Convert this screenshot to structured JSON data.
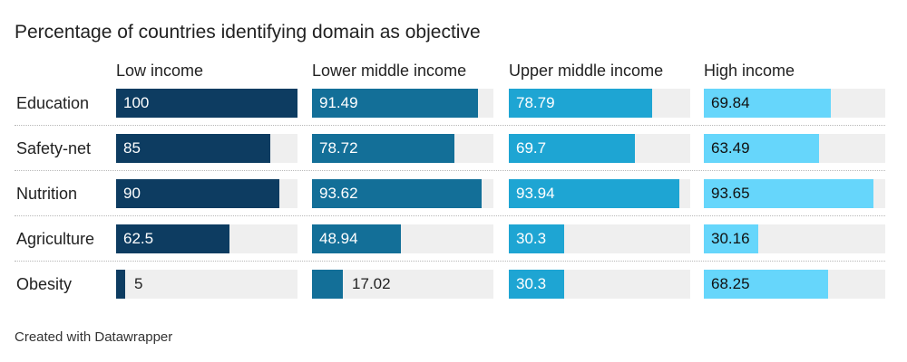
{
  "chart_data": {
    "type": "bar",
    "title": "Percentage of countries identifying domain as objective",
    "categories": [
      "Education",
      "Safety-net",
      "Nutrition",
      "Agriculture",
      "Obesity"
    ],
    "xlim": [
      0,
      100
    ],
    "series": [
      {
        "name": "Low income",
        "color": "#0d3c61",
        "values": [
          100,
          85,
          90,
          62.5,
          5
        ],
        "labels": [
          "100",
          "85",
          "90",
          "62.5",
          "5"
        ]
      },
      {
        "name": "Lower middle income",
        "color": "#136f98",
        "values": [
          91.49,
          78.72,
          93.62,
          48.94,
          17.02
        ],
        "labels": [
          "91.49",
          "78.72",
          "93.62",
          "48.94",
          "17.02"
        ]
      },
      {
        "name": "Upper middle income",
        "color": "#1ea5d3",
        "values": [
          78.79,
          69.7,
          93.94,
          30.3,
          30.3
        ],
        "labels": [
          "78.79",
          "69.7",
          "93.94",
          "30.3",
          "30.3"
        ]
      },
      {
        "name": "High income",
        "color": "#66d6fb",
        "values": [
          69.84,
          63.49,
          93.65,
          30.16,
          68.25
        ],
        "labels": [
          "69.84",
          "63.49",
          "93.65",
          "30.16",
          "68.25"
        ]
      }
    ]
  },
  "footer": "Created with Datawrapper"
}
